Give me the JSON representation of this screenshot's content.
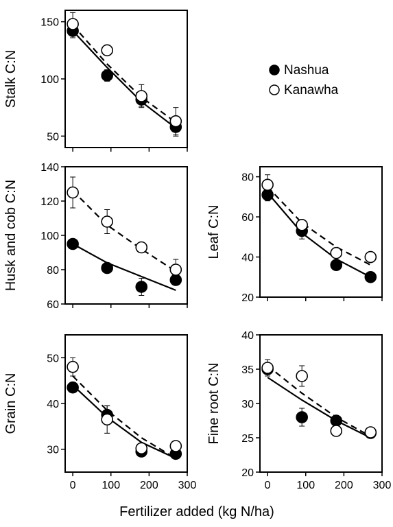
{
  "figure": {
    "xlabel": "Fertilizer added (kg N/ha)"
  },
  "legend": {
    "items": [
      {
        "label": "Nashua",
        "marker": "filled-circle"
      },
      {
        "label": "Kanawha",
        "marker": "open-circle"
      }
    ]
  },
  "colors": {
    "ink": "#000000",
    "background": "#ffffff"
  },
  "chart_data": [
    {
      "id": "stalk",
      "type": "scatter",
      "ylabel": "Stalk C:N",
      "xlim": [
        -20,
        300
      ],
      "ylim": [
        40,
        160
      ],
      "xticks": [
        0,
        100,
        200,
        300
      ],
      "yticks": [
        50,
        100,
        150
      ],
      "xtick_labels": [],
      "ytick_labels": [
        "50",
        "100",
        "150"
      ],
      "series": [
        {
          "name": "Nashua",
          "marker": "filled",
          "line": "solid",
          "x": [
            0,
            90,
            180,
            270
          ],
          "y": [
            142,
            103,
            82,
            58
          ],
          "err": [
            6,
            5,
            6,
            8
          ],
          "fit_y": [
            142,
            110,
            80,
            57
          ]
        },
        {
          "name": "Kanawha",
          "marker": "open",
          "line": "dashed",
          "x": [
            0,
            90,
            180,
            270
          ],
          "y": [
            148,
            125,
            85,
            63
          ],
          "err": [
            10,
            0,
            10,
            12
          ],
          "fit_y": [
            147,
            113,
            84,
            62
          ]
        }
      ]
    },
    {
      "id": "husk",
      "type": "scatter",
      "ylabel": "Husk and cob C:N",
      "xlim": [
        -20,
        300
      ],
      "ylim": [
        60,
        140
      ],
      "xticks": [
        0,
        100,
        200,
        300
      ],
      "yticks": [
        60,
        80,
        100,
        120,
        140
      ],
      "xtick_labels": [],
      "ytick_labels": [
        "60",
        "80",
        "100",
        "120",
        "140"
      ],
      "series": [
        {
          "name": "Nashua",
          "marker": "filled",
          "line": "solid",
          "x": [
            0,
            90,
            180,
            270
          ],
          "y": [
            95,
            81,
            70,
            74
          ],
          "err": [
            0,
            3,
            5,
            3
          ],
          "fit_y": [
            95,
            84,
            76,
            68
          ]
        },
        {
          "name": "Kanawha",
          "marker": "open",
          "line": "dashed",
          "x": [
            0,
            90,
            180,
            270
          ],
          "y": [
            125,
            108,
            93,
            80
          ],
          "err": [
            9,
            7,
            0,
            6
          ],
          "fit_y": [
            126,
            106,
            92,
            79
          ]
        }
      ]
    },
    {
      "id": "leaf",
      "type": "scatter",
      "ylabel": "Leaf C:N",
      "xlim": [
        -20,
        300
      ],
      "ylim": [
        20,
        85
      ],
      "xticks": [
        0,
        100,
        200,
        300
      ],
      "yticks": [
        20,
        40,
        60,
        80
      ],
      "xtick_labels": [],
      "ytick_labels": [
        "20",
        "40",
        "60",
        "80"
      ],
      "series": [
        {
          "name": "Nashua",
          "marker": "filled",
          "line": "solid",
          "x": [
            0,
            90,
            180,
            270
          ],
          "y": [
            71,
            53,
            36,
            30
          ],
          "err": [
            3,
            4,
            0,
            0
          ],
          "fit_y": [
            72,
            52,
            39,
            30
          ]
        },
        {
          "name": "Kanawha",
          "marker": "open",
          "line": "dashed",
          "x": [
            0,
            90,
            180,
            270
          ],
          "y": [
            76,
            56,
            42,
            40
          ],
          "err": [
            5,
            0,
            0,
            0
          ],
          "fit_y": [
            75,
            57,
            45,
            36
          ]
        }
      ]
    },
    {
      "id": "grain",
      "type": "scatter",
      "ylabel": "Grain C:N",
      "xlim": [
        -20,
        300
      ],
      "ylim": [
        25,
        55
      ],
      "xticks": [
        0,
        100,
        200,
        300
      ],
      "yticks": [
        30,
        40,
        50
      ],
      "xtick_labels": [
        "0",
        "100",
        "200",
        "300"
      ],
      "ytick_labels": [
        "30",
        "40",
        "50"
      ],
      "series": [
        {
          "name": "Nashua",
          "marker": "filled",
          "line": "solid",
          "x": [
            0,
            90,
            180,
            270
          ],
          "y": [
            43.5,
            37.5,
            29.5,
            29
          ],
          "err": [
            0,
            2,
            0.8,
            0
          ],
          "fit_y": [
            44,
            37,
            31.5,
            28
          ]
        },
        {
          "name": "Kanawha",
          "marker": "open",
          "line": "dashed",
          "x": [
            0,
            90,
            180,
            270
          ],
          "y": [
            48,
            36.5,
            30.2,
            30.7
          ],
          "err": [
            2,
            3,
            0,
            0
          ],
          "fit_y": [
            46,
            38.5,
            32.5,
            28
          ]
        }
      ]
    },
    {
      "id": "fineroot",
      "type": "scatter",
      "ylabel": "Fine root C:N",
      "xlim": [
        -20,
        300
      ],
      "ylim": [
        20,
        40
      ],
      "xticks": [
        0,
        100,
        200,
        300
      ],
      "yticks": [
        20,
        25,
        30,
        35,
        40
      ],
      "xtick_labels": [
        "0",
        "100",
        "200",
        "300"
      ],
      "ytick_labels": [
        "20",
        "25",
        "30",
        "35",
        "40"
      ],
      "series": [
        {
          "name": "Nashua",
          "marker": "filled",
          "line": "solid",
          "x": [
            0,
            90,
            180,
            270
          ],
          "y": [
            35,
            28,
            27.5,
            25.7
          ],
          "err": [
            0,
            1.3,
            0,
            0
          ],
          "fit_y": [
            33.8,
            30.5,
            27.5,
            25
          ]
        },
        {
          "name": "Kanawha",
          "marker": "open",
          "line": "dashed",
          "x": [
            0,
            90,
            180,
            270
          ],
          "y": [
            35.2,
            34,
            26,
            25.8
          ],
          "err": [
            1.2,
            1.5,
            0,
            0
          ],
          "fit_y": [
            35.5,
            31.5,
            28,
            25.2
          ]
        }
      ]
    }
  ]
}
